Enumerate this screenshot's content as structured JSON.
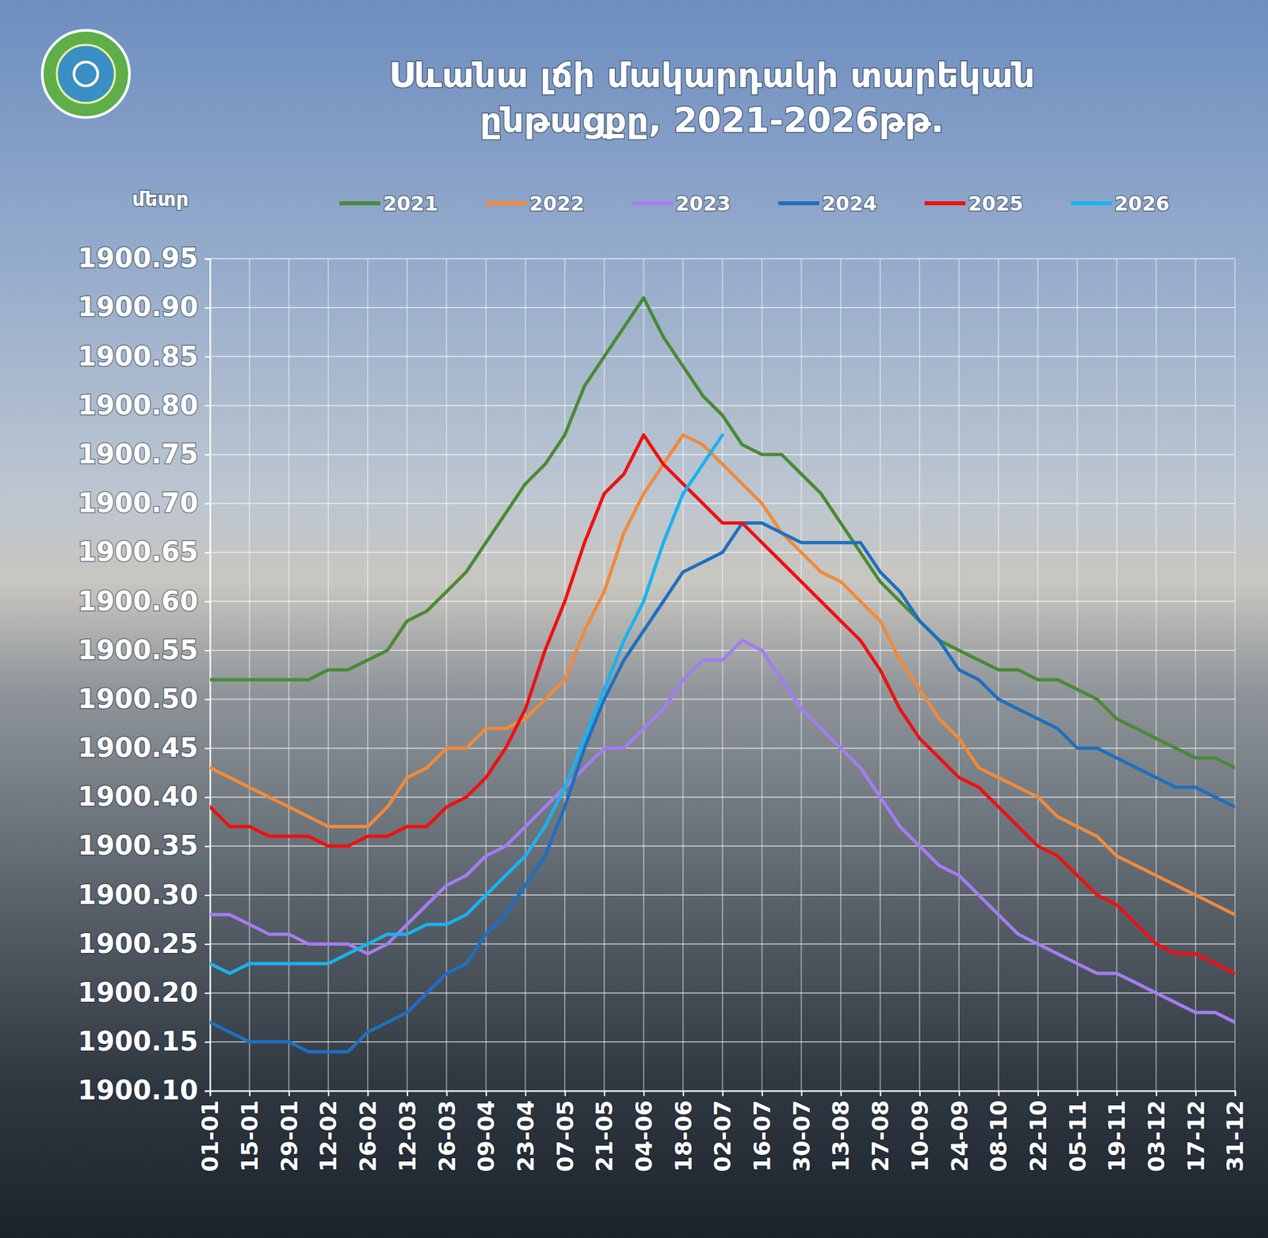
{
  "chart_data": {
    "type": "line",
    "title": "Սևանա լճի մակարդակի տարեկան ընթացքը, 2021-2026թթ.",
    "y_label": "մետր",
    "categories": [
      "01-01",
      null,
      "15-01",
      null,
      "29-01",
      null,
      "12-02",
      null,
      "26-02",
      null,
      "12-03",
      null,
      "26-03",
      null,
      "09-04",
      null,
      "23-04",
      null,
      "07-05",
      null,
      "21-05",
      null,
      "04-06",
      null,
      "18-06",
      null,
      "02-07",
      null,
      "16-07",
      null,
      "30-07",
      null,
      "13-08",
      null,
      "27-08",
      null,
      "10-09",
      null,
      "24-09",
      null,
      "08-10",
      null,
      "22-10",
      null,
      "05-11",
      null,
      "19-11",
      null,
      "03-12",
      null,
      "17-12",
      null,
      "31-12"
    ],
    "series": [
      {
        "name": "2021",
        "color": "#4a8a35",
        "values": [
          1900.52,
          1900.52,
          1900.52,
          1900.52,
          1900.52,
          1900.52,
          1900.53,
          1900.53,
          1900.54,
          1900.55,
          1900.58,
          1900.59,
          1900.61,
          1900.63,
          1900.66,
          1900.69,
          1900.72,
          1900.74,
          1900.77,
          1900.82,
          1900.85,
          1900.88,
          1900.91,
          1900.87,
          1900.84,
          1900.81,
          1900.79,
          1900.76,
          1900.75,
          1900.75,
          1900.73,
          1900.71,
          1900.68,
          1900.65,
          1900.62,
          1900.6,
          1900.58,
          1900.56,
          1900.55,
          1900.54,
          1900.53,
          1900.53,
          1900.52,
          1900.52,
          1900.51,
          1900.5,
          1900.48,
          1900.47,
          1900.46,
          1900.45,
          1900.44,
          1900.44,
          1900.43
        ]
      },
      {
        "name": "2022",
        "color": "#f08a3c",
        "values": [
          1900.43,
          1900.42,
          1900.41,
          1900.4,
          1900.39,
          1900.38,
          1900.37,
          1900.37,
          1900.37,
          1900.39,
          1900.42,
          1900.43,
          1900.45,
          1900.45,
          1900.47,
          1900.47,
          1900.48,
          1900.5,
          1900.52,
          1900.57,
          1900.61,
          1900.67,
          1900.71,
          1900.74,
          1900.77,
          1900.76,
          1900.74,
          1900.72,
          1900.7,
          1900.67,
          1900.65,
          1900.63,
          1900.62,
          1900.6,
          1900.58,
          1900.54,
          1900.51,
          1900.48,
          1900.46,
          1900.43,
          1900.42,
          1900.41,
          1900.4,
          1900.38,
          1900.37,
          1900.36,
          1900.34,
          1900.33,
          1900.32,
          1900.31,
          1900.3,
          1900.29,
          1900.28
        ]
      },
      {
        "name": "2023",
        "color": "#a57cf0",
        "values": [
          1900.28,
          1900.28,
          1900.27,
          1900.26,
          1900.26,
          1900.25,
          1900.25,
          1900.25,
          1900.24,
          1900.25,
          1900.27,
          1900.29,
          1900.31,
          1900.32,
          1900.34,
          1900.35,
          1900.37,
          1900.39,
          1900.41,
          1900.43,
          1900.45,
          1900.45,
          1900.47,
          1900.49,
          1900.52,
          1900.54,
          1900.54,
          1900.56,
          1900.55,
          1900.52,
          1900.49,
          1900.47,
          1900.45,
          1900.43,
          1900.4,
          1900.37,
          1900.35,
          1900.33,
          1900.32,
          1900.3,
          1900.28,
          1900.26,
          1900.25,
          1900.24,
          1900.23,
          1900.22,
          1900.22,
          1900.21,
          1900.2,
          1900.19,
          1900.18,
          1900.18,
          1900.17
        ]
      },
      {
        "name": "2024",
        "color": "#1f6fc0",
        "values": [
          1900.17,
          1900.16,
          1900.15,
          1900.15,
          1900.15,
          1900.14,
          1900.14,
          1900.14,
          1900.16,
          1900.17,
          1900.18,
          1900.2,
          1900.22,
          1900.23,
          1900.26,
          1900.28,
          1900.31,
          1900.34,
          1900.39,
          1900.45,
          1900.5,
          1900.54,
          1900.57,
          1900.6,
          1900.63,
          1900.64,
          1900.65,
          1900.68,
          1900.68,
          1900.67,
          1900.66,
          1900.66,
          1900.66,
          1900.66,
          1900.63,
          1900.61,
          1900.58,
          1900.56,
          1900.53,
          1900.52,
          1900.5,
          1900.49,
          1900.48,
          1900.47,
          1900.45,
          1900.45,
          1900.44,
          1900.43,
          1900.42,
          1900.41,
          1900.41,
          1900.4,
          1900.39
        ]
      },
      {
        "name": "2025",
        "color": "#ee1111",
        "values": [
          1900.39,
          1900.37,
          1900.37,
          1900.36,
          1900.36,
          1900.36,
          1900.35,
          1900.35,
          1900.36,
          1900.36,
          1900.37,
          1900.37,
          1900.39,
          1900.4,
          1900.42,
          1900.45,
          1900.49,
          1900.55,
          1900.6,
          1900.66,
          1900.71,
          1900.73,
          1900.77,
          1900.74,
          1900.72,
          1900.7,
          1900.68,
          1900.68,
          1900.66,
          1900.64,
          1900.62,
          1900.6,
          1900.58,
          1900.56,
          1900.53,
          1900.49,
          1900.46,
          1900.44,
          1900.42,
          1900.41,
          1900.39,
          1900.37,
          1900.35,
          1900.34,
          1900.32,
          1900.3,
          1900.29,
          1900.27,
          1900.25,
          1900.24,
          1900.24,
          1900.23,
          1900.22
        ]
      },
      {
        "name": "2026",
        "color": "#1ab2f0",
        "values": [
          1900.23,
          1900.22,
          1900.23,
          1900.23,
          1900.23,
          1900.23,
          1900.23,
          1900.24,
          1900.25,
          1900.26,
          1900.26,
          1900.27,
          1900.27,
          1900.28,
          1900.3,
          1900.32,
          1900.34,
          1900.37,
          1900.41,
          1900.46,
          1900.51,
          1900.56,
          1900.6,
          1900.66,
          1900.71,
          1900.74,
          1900.77,
          null,
          null,
          null,
          null,
          null,
          null,
          null,
          null,
          null,
          null,
          null,
          null,
          null,
          null,
          null,
          null,
          null,
          null,
          null,
          null,
          null,
          null,
          null,
          null,
          null,
          null
        ]
      }
    ],
    "ylim": [
      1900.1,
      1900.95
    ],
    "yticks": [
      {
        "value": 1900.1,
        "label": "1900.10"
      },
      1900.15,
      {
        "value": 1900.2,
        "label": "1900.20"
      },
      1900.25,
      {
        "value": 1900.3,
        "label": "1900.30"
      },
      1900.35,
      {
        "value": 1900.4,
        "label": "1900.40"
      },
      1900.45,
      {
        "value": 1900.5,
        "label": "1900.50"
      },
      1900.55,
      {
        "value": 1900.6,
        "label": "1900.60"
      },
      1900.65,
      {
        "value": 1900.7,
        "label": "1900.70"
      },
      1900.75,
      {
        "value": 1900.8,
        "label": "1900.80"
      },
      1900.85,
      {
        "value": 1900.9,
        "label": "1900.90"
      },
      1900.95
    ],
    "grid": true,
    "legend": "top"
  }
}
